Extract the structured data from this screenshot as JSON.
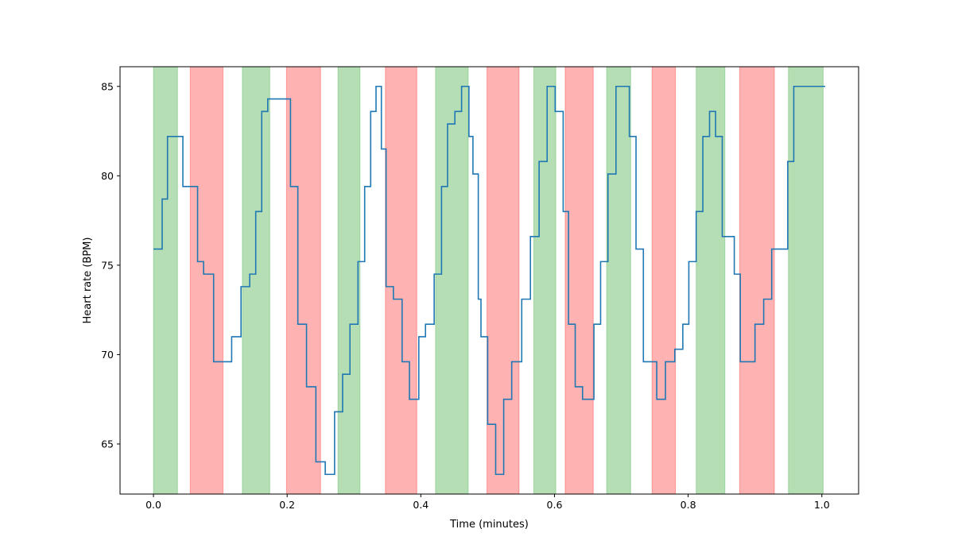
{
  "chart_data": {
    "type": "line",
    "title": "",
    "xlabel": "Time (minutes)",
    "ylabel": "Heart rate (BPM)",
    "xlim": [
      -0.05,
      1.055
    ],
    "ylim": [
      62.2,
      86.1
    ],
    "xticks": [
      0.0,
      0.2,
      0.4,
      0.6,
      0.8,
      1.0
    ],
    "xtick_labels": [
      "0.0",
      "0.2",
      "0.4",
      "0.6",
      "0.8",
      "1.0"
    ],
    "yticks": [
      65,
      70,
      75,
      80,
      85
    ],
    "ytick_labels": [
      "65",
      "70",
      "75",
      "80",
      "85"
    ],
    "grid": false,
    "legend": "none",
    "series": [
      {
        "color": "#1f77b4",
        "drawstyle": "steps-post",
        "x": [
          0.0,
          0.013,
          0.021,
          0.044,
          0.066,
          0.075,
          0.09,
          0.097,
          0.117,
          0.131,
          0.144,
          0.153,
          0.162,
          0.171,
          0.205,
          0.216,
          0.229,
          0.243,
          0.257,
          0.271,
          0.283,
          0.294,
          0.306,
          0.316,
          0.325,
          0.333,
          0.341,
          0.344,
          0.348,
          0.359,
          0.372,
          0.383,
          0.397,
          0.407,
          0.42,
          0.431,
          0.44,
          0.451,
          0.461,
          0.472,
          0.478,
          0.486,
          0.49,
          0.5,
          0.512,
          0.524,
          0.536,
          0.551,
          0.564,
          0.577,
          0.589,
          0.601,
          0.613,
          0.621,
          0.631,
          0.642,
          0.659,
          0.669,
          0.68,
          0.692,
          0.702,
          0.712,
          0.722,
          0.733,
          0.753,
          0.766,
          0.78,
          0.792,
          0.801,
          0.812,
          0.822,
          0.832,
          0.841,
          0.851,
          0.869,
          0.878,
          0.89,
          0.9,
          0.913,
          0.925,
          0.949,
          0.958,
          0.966,
          0.974,
          0.983,
          0.992,
          1.005
        ],
        "y": [
          75.9,
          78.7,
          82.2,
          79.4,
          75.2,
          74.5,
          69.6,
          69.6,
          71.0,
          73.8,
          74.5,
          78.0,
          83.6,
          84.3,
          79.4,
          71.7,
          68.2,
          64.0,
          63.3,
          66.8,
          68.9,
          71.7,
          75.2,
          79.4,
          83.6,
          85.0,
          81.5,
          81.5,
          73.8,
          73.1,
          69.6,
          67.5,
          71.0,
          71.7,
          74.5,
          79.4,
          82.9,
          83.6,
          85.0,
          82.2,
          80.1,
          73.1,
          71.0,
          66.1,
          63.3,
          67.5,
          69.6,
          73.1,
          76.6,
          80.8,
          85.0,
          83.6,
          78.0,
          71.7,
          68.2,
          67.5,
          71.7,
          75.2,
          80.1,
          85.0,
          85.0,
          82.2,
          75.9,
          69.6,
          67.5,
          69.6,
          70.3,
          71.7,
          75.2,
          78.0,
          82.2,
          83.6,
          82.2,
          76.6,
          74.5,
          69.6,
          69.6,
          71.7,
          73.1,
          75.9,
          80.8,
          85.0,
          85.0,
          85.0,
          85.0,
          85.0,
          85.0
        ]
      }
    ],
    "bands": [
      {
        "x0": 0.0,
        "x1": 0.036,
        "color": "#2ca02c"
      },
      {
        "x0": 0.055,
        "x1": 0.104,
        "color": "#ff0000"
      },
      {
        "x0": 0.133,
        "x1": 0.174,
        "color": "#2ca02c"
      },
      {
        "x0": 0.199,
        "x1": 0.25,
        "color": "#ff0000"
      },
      {
        "x0": 0.276,
        "x1": 0.309,
        "color": "#2ca02c"
      },
      {
        "x0": 0.347,
        "x1": 0.394,
        "color": "#ff0000"
      },
      {
        "x0": 0.422,
        "x1": 0.471,
        "color": "#2ca02c"
      },
      {
        "x0": 0.499,
        "x1": 0.547,
        "color": "#ff0000"
      },
      {
        "x0": 0.569,
        "x1": 0.602,
        "color": "#2ca02c"
      },
      {
        "x0": 0.616,
        "x1": 0.658,
        "color": "#ff0000"
      },
      {
        "x0": 0.678,
        "x1": 0.714,
        "color": "#2ca02c"
      },
      {
        "x0": 0.746,
        "x1": 0.781,
        "color": "#ff0000"
      },
      {
        "x0": 0.812,
        "x1": 0.855,
        "color": "#2ca02c"
      },
      {
        "x0": 0.877,
        "x1": 0.929,
        "color": "#ff0000"
      },
      {
        "x0": 0.95,
        "x1": 1.002,
        "color": "#2ca02c"
      }
    ]
  }
}
